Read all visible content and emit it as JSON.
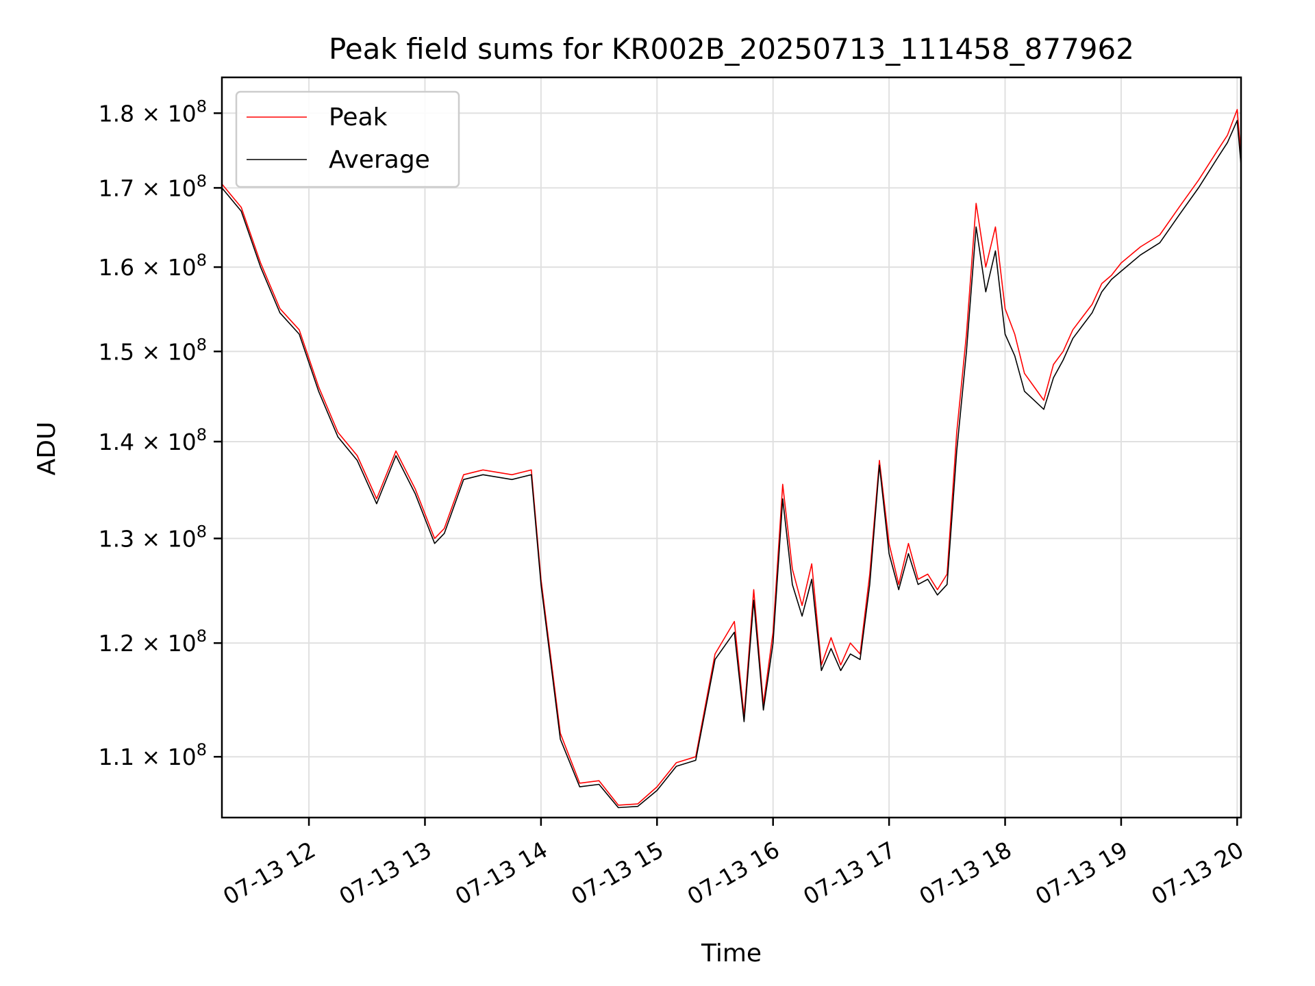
{
  "chart_data": {
    "type": "line",
    "title": "Peak field sums for KR002B_20250713_111458_877962",
    "xlabel": "Time",
    "ylabel": "ADU",
    "y_scale": "log",
    "grid": true,
    "legend_position": "top-left",
    "xlim": [
      "2025-07-13 11:15",
      "2025-07-13 20:02"
    ],
    "ylim": [
      105000000,
      185000000
    ],
    "x_ticks": [
      "07-13 12",
      "07-13 13",
      "07-13 14",
      "07-13 15",
      "07-13 16",
      "07-13 17",
      "07-13 18",
      "07-13 19",
      "07-13 20"
    ],
    "y_ticks": [
      {
        "value": 110000000,
        "mantissa": "1.1",
        "base": "10",
        "exp": "8"
      },
      {
        "value": 120000000,
        "mantissa": "1.2",
        "base": "10",
        "exp": "8"
      },
      {
        "value": 130000000,
        "mantissa": "1.3",
        "base": "10",
        "exp": "8"
      },
      {
        "value": 140000000,
        "mantissa": "1.4",
        "base": "10",
        "exp": "8"
      },
      {
        "value": 150000000,
        "mantissa": "1.5",
        "base": "10",
        "exp": "8"
      },
      {
        "value": 160000000,
        "mantissa": "1.6",
        "base": "10",
        "exp": "8"
      },
      {
        "value": 170000000,
        "mantissa": "1.7",
        "base": "10",
        "exp": "8"
      },
      {
        "value": 180000000,
        "mantissa": "1.8",
        "base": "10",
        "exp": "8"
      }
    ],
    "series": [
      {
        "name": "Peak",
        "color": "#ff0000",
        "x": [
          "2025-07-13 11:15",
          "2025-07-13 11:25",
          "2025-07-13 11:35",
          "2025-07-13 11:45",
          "2025-07-13 11:55",
          "2025-07-13 12:05",
          "2025-07-13 12:15",
          "2025-07-13 12:25",
          "2025-07-13 12:35",
          "2025-07-13 12:45",
          "2025-07-13 12:55",
          "2025-07-13 13:05",
          "2025-07-13 13:10",
          "2025-07-13 13:20",
          "2025-07-13 13:30",
          "2025-07-13 13:45",
          "2025-07-13 13:55",
          "2025-07-13 14:00",
          "2025-07-13 14:10",
          "2025-07-13 14:20",
          "2025-07-13 14:30",
          "2025-07-13 14:40",
          "2025-07-13 14:50",
          "2025-07-13 15:00",
          "2025-07-13 15:10",
          "2025-07-13 15:20",
          "2025-07-13 15:30",
          "2025-07-13 15:40",
          "2025-07-13 15:45",
          "2025-07-13 15:50",
          "2025-07-13 15:55",
          "2025-07-13 16:00",
          "2025-07-13 16:05",
          "2025-07-13 16:10",
          "2025-07-13 16:15",
          "2025-07-13 16:20",
          "2025-07-13 16:25",
          "2025-07-13 16:30",
          "2025-07-13 16:35",
          "2025-07-13 16:40",
          "2025-07-13 16:45",
          "2025-07-13 16:50",
          "2025-07-13 16:55",
          "2025-07-13 17:00",
          "2025-07-13 17:05",
          "2025-07-13 17:10",
          "2025-07-13 17:15",
          "2025-07-13 17:20",
          "2025-07-13 17:25",
          "2025-07-13 17:30",
          "2025-07-13 17:35",
          "2025-07-13 17:40",
          "2025-07-13 17:45",
          "2025-07-13 17:50",
          "2025-07-13 17:55",
          "2025-07-13 18:00",
          "2025-07-13 18:05",
          "2025-07-13 18:10",
          "2025-07-13 18:15",
          "2025-07-13 18:20",
          "2025-07-13 18:25",
          "2025-07-13 18:30",
          "2025-07-13 18:35",
          "2025-07-13 18:40",
          "2025-07-13 18:45",
          "2025-07-13 18:50",
          "2025-07-13 18:55",
          "2025-07-13 19:00",
          "2025-07-13 19:10",
          "2025-07-13 19:20",
          "2025-07-13 19:30",
          "2025-07-13 19:40",
          "2025-07-13 19:50",
          "2025-07-13 19:55",
          "2025-07-13 20:00",
          "2025-07-13 20:02"
        ],
        "values": [
          170500000,
          167500000,
          160500000,
          155000000,
          152500000,
          146000000,
          141000000,
          138500000,
          134000000,
          139000000,
          135000000,
          130000000,
          131000000,
          136500000,
          137000000,
          136500000,
          137000000,
          126000000,
          112000000,
          107800000,
          108000000,
          106000000,
          106100000,
          107500000,
          109500000,
          110000000,
          119000000,
          122000000,
          113500000,
          125000000,
          114500000,
          121000000,
          135500000,
          127000000,
          123500000,
          127500000,
          118000000,
          120500000,
          118000000,
          120000000,
          119000000,
          126500000,
          138000000,
          129500000,
          125500000,
          129500000,
          126000000,
          126500000,
          125000000,
          126500000,
          141000000,
          152000000,
          168000000,
          160000000,
          165000000,
          155000000,
          152000000,
          147500000,
          146000000,
          144500000,
          148500000,
          150000000,
          152500000,
          154000000,
          155500000,
          158000000,
          159000000,
          160500000,
          162500000,
          164000000,
          167500000,
          171000000,
          175000000,
          177000000,
          180500000,
          174000000
        ]
      },
      {
        "name": "Average",
        "color": "#000000",
        "x": [
          "2025-07-13 11:15",
          "2025-07-13 11:25",
          "2025-07-13 11:35",
          "2025-07-13 11:45",
          "2025-07-13 11:55",
          "2025-07-13 12:05",
          "2025-07-13 12:15",
          "2025-07-13 12:25",
          "2025-07-13 12:35",
          "2025-07-13 12:45",
          "2025-07-13 12:55",
          "2025-07-13 13:05",
          "2025-07-13 13:10",
          "2025-07-13 13:20",
          "2025-07-13 13:30",
          "2025-07-13 13:45",
          "2025-07-13 13:55",
          "2025-07-13 14:00",
          "2025-07-13 14:10",
          "2025-07-13 14:20",
          "2025-07-13 14:30",
          "2025-07-13 14:40",
          "2025-07-13 14:50",
          "2025-07-13 15:00",
          "2025-07-13 15:10",
          "2025-07-13 15:20",
          "2025-07-13 15:30",
          "2025-07-13 15:40",
          "2025-07-13 15:45",
          "2025-07-13 15:50",
          "2025-07-13 15:55",
          "2025-07-13 16:00",
          "2025-07-13 16:05",
          "2025-07-13 16:10",
          "2025-07-13 16:15",
          "2025-07-13 16:20",
          "2025-07-13 16:25",
          "2025-07-13 16:30",
          "2025-07-13 16:35",
          "2025-07-13 16:40",
          "2025-07-13 16:45",
          "2025-07-13 16:50",
          "2025-07-13 16:55",
          "2025-07-13 17:00",
          "2025-07-13 17:05",
          "2025-07-13 17:10",
          "2025-07-13 17:15",
          "2025-07-13 17:20",
          "2025-07-13 17:25",
          "2025-07-13 17:30",
          "2025-07-13 17:35",
          "2025-07-13 17:40",
          "2025-07-13 17:45",
          "2025-07-13 17:50",
          "2025-07-13 17:55",
          "2025-07-13 18:00",
          "2025-07-13 18:05",
          "2025-07-13 18:10",
          "2025-07-13 18:15",
          "2025-07-13 18:20",
          "2025-07-13 18:25",
          "2025-07-13 18:30",
          "2025-07-13 18:35",
          "2025-07-13 18:40",
          "2025-07-13 18:45",
          "2025-07-13 18:50",
          "2025-07-13 18:55",
          "2025-07-13 19:00",
          "2025-07-13 19:10",
          "2025-07-13 19:20",
          "2025-07-13 19:30",
          "2025-07-13 19:40",
          "2025-07-13 19:50",
          "2025-07-13 19:55",
          "2025-07-13 20:00",
          "2025-07-13 20:02"
        ],
        "values": [
          170000000,
          167000000,
          160000000,
          154500000,
          152000000,
          145500000,
          140500000,
          138000000,
          133500000,
          138500000,
          134500000,
          129500000,
          130500000,
          136000000,
          136500000,
          136000000,
          136500000,
          125500000,
          111500000,
          107500000,
          107700000,
          105800000,
          105900000,
          107200000,
          109200000,
          109700000,
          118500000,
          121000000,
          113000000,
          124000000,
          114000000,
          120000000,
          134000000,
          125500000,
          122500000,
          126000000,
          117500000,
          119500000,
          117500000,
          119000000,
          118500000,
          125500000,
          137500000,
          128500000,
          125000000,
          128500000,
          125500000,
          126000000,
          124500000,
          125500000,
          139000000,
          150000000,
          165000000,
          157000000,
          162000000,
          152000000,
          149500000,
          145500000,
          144500000,
          143500000,
          147000000,
          149000000,
          151500000,
          153000000,
          154500000,
          157000000,
          158500000,
          159500000,
          161500000,
          163000000,
          166500000,
          170000000,
          174000000,
          176000000,
          179000000,
          173000000
        ]
      }
    ]
  }
}
